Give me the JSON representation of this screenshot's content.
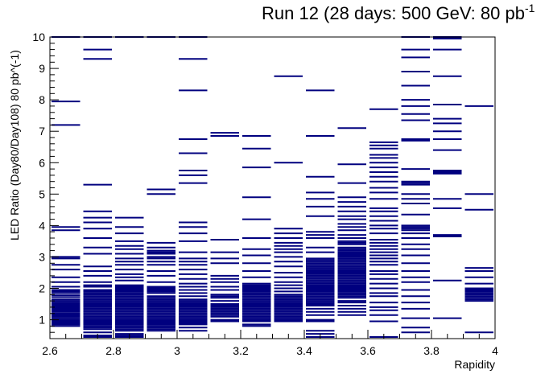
{
  "chart_data": {
    "type": "scatter",
    "title": "Run 12 (28 days: 500 GeV: 80 pb",
    "title_superscript": "-1",
    "xlabel": "Rapidity",
    "ylabel": "LED Ratio (Day80/Day108) 80 pb^(-1)",
    "xlim": [
      2.6,
      4.0
    ],
    "ylim": [
      0.4,
      10.0
    ],
    "x_ticks": [
      "2.6",
      "2.8",
      "3",
      "3.2",
      "3.4",
      "3.6",
      "3.8",
      "4"
    ],
    "y_ticks": [
      "1",
      "2",
      "3",
      "4",
      "5",
      "6",
      "7",
      "8",
      "9",
      "10"
    ],
    "grid": false,
    "marker": "horizontal-dash",
    "marker_color": "#00007f",
    "bins": [
      {
        "x": 2.65,
        "values": [
          10.0,
          7.95,
          7.2,
          3.95,
          3.85,
          3.0,
          2.95,
          2.75,
          2.6,
          2.35,
          2.2,
          2.05,
          1.95,
          1.9,
          1.85,
          1.78,
          1.72,
          1.65,
          1.6,
          1.55,
          1.5,
          1.45,
          1.42,
          1.38,
          1.35,
          1.3,
          1.25,
          1.2,
          1.15,
          1.1,
          1.05,
          1.0,
          0.95,
          0.9,
          0.85,
          0.8,
          1.48,
          1.33,
          1.28,
          1.18,
          1.12
        ]
      },
      {
        "x": 2.75,
        "values": [
          10.0,
          9.6,
          9.3,
          5.3,
          4.45,
          4.25,
          4.1,
          3.9,
          3.6,
          3.3,
          3.1,
          2.7,
          2.55,
          2.4,
          2.2,
          2.1,
          2.05,
          1.95,
          1.9,
          1.85,
          1.8,
          1.75,
          1.7,
          1.65,
          1.6,
          1.55,
          1.5,
          1.45,
          1.4,
          1.35,
          1.3,
          1.25,
          1.2,
          1.15,
          1.1,
          1.05,
          1.0,
          0.95,
          0.9,
          0.85,
          0.8,
          0.75,
          0.7,
          0.6,
          0.5,
          0.45
        ]
      },
      {
        "x": 2.85,
        "values": [
          10.0,
          4.25,
          3.95,
          3.75,
          3.5,
          3.35,
          3.25,
          3.1,
          2.95,
          2.85,
          2.75,
          2.6,
          2.45,
          2.35,
          2.25,
          2.1,
          2.05,
          2.0,
          1.95,
          1.9,
          1.85,
          1.8,
          1.75,
          1.7,
          1.65,
          1.6,
          1.55,
          1.5,
          1.45,
          1.4,
          1.35,
          1.3,
          1.25,
          1.2,
          1.15,
          1.1,
          1.05,
          1.0,
          0.95,
          0.9,
          0.85,
          0.8,
          0.75,
          0.7,
          0.65,
          0.55,
          0.5,
          0.45
        ]
      },
      {
        "x": 2.95,
        "values": [
          10.0,
          5.15,
          5.0,
          3.45,
          3.3,
          3.2,
          3.15,
          3.1,
          3.0,
          2.95,
          2.85,
          2.75,
          2.55,
          2.4,
          2.2,
          2.05,
          2.0,
          1.95,
          1.9,
          1.85,
          1.75,
          1.7,
          1.65,
          1.6,
          1.55,
          1.5,
          1.45,
          1.4,
          1.35,
          1.3,
          1.25,
          1.2,
          1.15,
          1.1,
          1.05,
          1.0,
          0.95,
          0.9,
          0.85,
          0.8,
          0.75,
          0.7,
          0.65
        ]
      },
      {
        "x": 3.05,
        "values": [
          10.0,
          9.3,
          8.3,
          6.75,
          6.3,
          5.75,
          5.6,
          5.35,
          4.1,
          3.95,
          3.75,
          3.5,
          3.15,
          2.95,
          2.85,
          2.75,
          2.6,
          2.45,
          2.3,
          2.15,
          2.05,
          1.95,
          1.85,
          1.75,
          1.65,
          1.6,
          1.55,
          1.5,
          1.45,
          1.4,
          1.35,
          1.3,
          1.25,
          1.2,
          1.15,
          1.1,
          1.05,
          1.0,
          0.95,
          0.9,
          0.85,
          0.75,
          0.65
        ]
      },
      {
        "x": 3.15,
        "values": [
          6.95,
          6.85,
          3.55,
          3.15,
          2.95,
          2.8,
          2.4,
          2.3,
          2.2,
          2.05,
          1.95,
          1.8,
          1.75,
          1.7,
          1.6,
          1.5,
          1.45,
          1.4,
          1.35,
          1.3,
          1.25,
          1.2,
          1.15,
          1.1,
          1.0,
          0.95
        ]
      },
      {
        "x": 3.25,
        "values": [
          6.85,
          6.45,
          5.85,
          4.9,
          4.2,
          3.6,
          3.25,
          3.05,
          2.8,
          2.55,
          2.35,
          2.15,
          2.1,
          2.05,
          2.0,
          1.95,
          1.9,
          1.85,
          1.8,
          1.75,
          1.7,
          1.65,
          1.6,
          1.55,
          1.5,
          1.45,
          1.4,
          1.35,
          1.3,
          1.25,
          1.2,
          1.15,
          1.1,
          1.05,
          1.0,
          0.95,
          0.85,
          0.8
        ]
      },
      {
        "x": 3.35,
        "values": [
          8.75,
          6.0,
          3.9,
          3.75,
          3.6,
          3.45,
          3.35,
          3.25,
          3.15,
          3.0,
          2.85,
          2.7,
          2.5,
          2.35,
          2.2,
          2.1,
          2.0,
          1.9,
          1.8,
          1.75,
          1.7,
          1.65,
          1.6,
          1.55,
          1.5,
          1.45,
          1.4,
          1.35,
          1.3,
          1.25,
          1.2,
          1.15,
          1.1,
          1.05,
          1.0,
          0.95
        ]
      },
      {
        "x": 3.45,
        "values": [
          8.3,
          6.85,
          5.55,
          5.05,
          4.85,
          4.6,
          4.3,
          3.8,
          3.7,
          3.6,
          3.3,
          3.15,
          2.95,
          2.9,
          2.85,
          2.8,
          2.75,
          2.7,
          2.65,
          2.6,
          2.55,
          2.5,
          2.45,
          2.4,
          2.35,
          2.3,
          2.25,
          2.2,
          2.15,
          2.1,
          2.05,
          2.0,
          1.95,
          1.9,
          1.85,
          1.8,
          1.75,
          1.7,
          1.65,
          1.6,
          1.55,
          1.5,
          1.45,
          1.35,
          1.25,
          1.15,
          1.0,
          0.95,
          0.65,
          0.55,
          0.45
        ]
      },
      {
        "x": 3.55,
        "values": [
          7.1,
          5.95,
          5.35,
          4.9,
          4.75,
          4.6,
          4.45,
          4.3,
          4.2,
          4.05,
          3.95,
          3.85,
          3.7,
          3.6,
          3.5,
          3.45,
          3.4,
          3.3,
          3.25,
          3.2,
          3.15,
          3.1,
          3.05,
          3.0,
          2.95,
          2.9,
          2.85,
          2.8,
          2.75,
          2.7,
          2.65,
          2.6,
          2.55,
          2.5,
          2.45,
          2.4,
          2.35,
          2.3,
          2.25,
          2.2,
          2.15,
          2.1,
          2.05,
          2.0,
          1.95,
          1.9,
          1.85,
          1.8,
          1.75,
          1.7,
          1.6,
          1.55,
          1.45,
          1.35,
          1.25,
          1.15
        ]
      },
      {
        "x": 3.65,
        "values": [
          7.7,
          6.65,
          6.55,
          6.45,
          6.25,
          6.15,
          6.0,
          5.85,
          5.7,
          5.55,
          5.4,
          5.2,
          5.05,
          4.85,
          4.55,
          4.45,
          4.3,
          4.15,
          4.0,
          3.9,
          3.75,
          3.55,
          3.45,
          3.35,
          3.25,
          3.15,
          3.05,
          2.95,
          2.85,
          2.75,
          2.55,
          2.45,
          2.3,
          2.15,
          2.0,
          1.85,
          1.75,
          1.55,
          1.4,
          1.3,
          1.15,
          0.95,
          0.45
        ]
      },
      {
        "x": 3.75,
        "values": [
          10.0,
          9.6,
          9.35,
          8.9,
          8.45,
          8.0,
          7.8,
          7.55,
          7.35,
          6.75,
          6.7,
          5.8,
          5.4,
          5.35,
          5.3,
          5.0,
          4.85,
          4.7,
          4.35,
          4.0,
          3.95,
          3.9,
          3.85,
          3.75,
          3.6,
          3.4,
          3.25,
          3.05,
          2.8,
          2.55,
          2.35,
          2.2,
          1.95,
          1.75,
          1.55,
          1.35,
          1.05,
          0.75,
          0.6
        ]
      },
      {
        "x": 3.85,
        "values": [
          10.0,
          9.95,
          9.6,
          8.75,
          7.85,
          7.4,
          7.25,
          7.0,
          6.75,
          6.4,
          5.75,
          5.7,
          5.65,
          4.85,
          4.55,
          3.7,
          3.65,
          2.25,
          1.05
        ]
      },
      {
        "x": 3.95,
        "values": [
          7.8,
          5.0,
          4.5,
          2.65,
          2.55,
          2.35,
          2.15,
          2.0,
          1.95,
          1.9,
          1.85,
          1.8,
          1.75,
          1.7,
          1.65,
          1.6,
          0.6
        ]
      }
    ]
  }
}
